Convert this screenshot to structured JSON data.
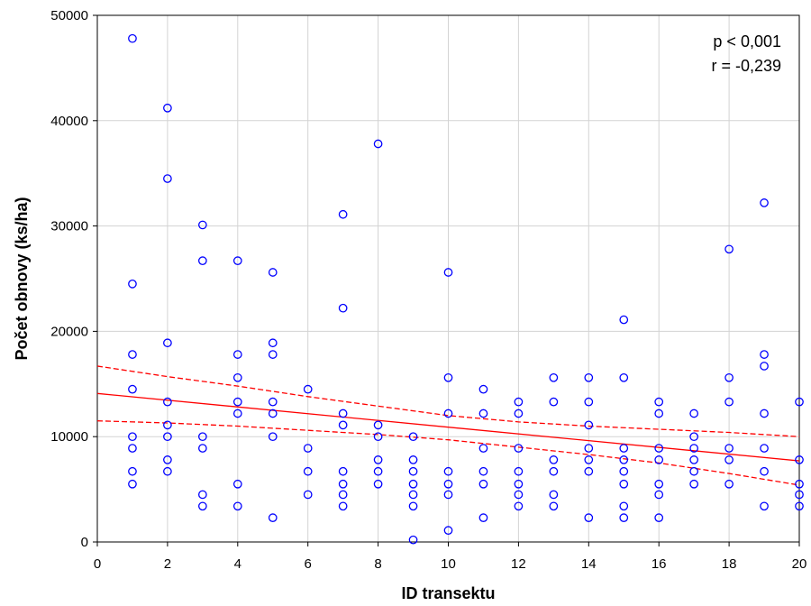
{
  "chart_data": {
    "type": "scatter",
    "title": "",
    "xlabel": "ID transektu",
    "ylabel": "Počet obnovy (ks/ha)",
    "xlim": [
      0,
      20
    ],
    "ylim": [
      0,
      50000
    ],
    "xticks": [
      0,
      2,
      4,
      6,
      8,
      10,
      12,
      14,
      16,
      18,
      20
    ],
    "yticks": [
      0,
      10000,
      20000,
      30000,
      40000,
      50000
    ],
    "x_tick_labels": [
      "0",
      "2",
      "4",
      "6",
      "8",
      "10",
      "12",
      "14",
      "16",
      "18",
      "20"
    ],
    "y_tick_labels": [
      "0",
      "10000",
      "20000",
      "30000",
      "40000",
      "50000"
    ],
    "grid": true,
    "annotations": [
      "p < 0,001",
      "r = -0,239"
    ],
    "colors": {
      "points": "#0000ff",
      "fit": "#ff0000"
    },
    "points": [
      [
        1,
        47800
      ],
      [
        1,
        24500
      ],
      [
        1,
        17800
      ],
      [
        1,
        14500
      ],
      [
        1,
        10000
      ],
      [
        1,
        8900
      ],
      [
        1,
        6700
      ],
      [
        1,
        5500
      ],
      [
        2,
        41200
      ],
      [
        2,
        34500
      ],
      [
        2,
        18900
      ],
      [
        2,
        13300
      ],
      [
        2,
        11100
      ],
      [
        2,
        10000
      ],
      [
        2,
        7800
      ],
      [
        2,
        6700
      ],
      [
        3,
        30100
      ],
      [
        3,
        26700
      ],
      [
        3,
        10000
      ],
      [
        3,
        8900
      ],
      [
        3,
        4500
      ],
      [
        3,
        3400
      ],
      [
        4,
        26700
      ],
      [
        4,
        17800
      ],
      [
        4,
        15600
      ],
      [
        4,
        13300
      ],
      [
        4,
        12200
      ],
      [
        4,
        5500
      ],
      [
        4,
        3400
      ],
      [
        5,
        25600
      ],
      [
        5,
        18900
      ],
      [
        5,
        17800
      ],
      [
        5,
        13300
      ],
      [
        5,
        12200
      ],
      [
        5,
        10000
      ],
      [
        5,
        2300
      ],
      [
        6,
        14500
      ],
      [
        6,
        8900
      ],
      [
        6,
        6700
      ],
      [
        6,
        4500
      ],
      [
        7,
        31100
      ],
      [
        7,
        22200
      ],
      [
        7,
        12200
      ],
      [
        7,
        11100
      ],
      [
        7,
        6700
      ],
      [
        7,
        5500
      ],
      [
        7,
        4500
      ],
      [
        7,
        3400
      ],
      [
        8,
        37800
      ],
      [
        8,
        11100
      ],
      [
        8,
        10000
      ],
      [
        8,
        7800
      ],
      [
        8,
        6700
      ],
      [
        8,
        5500
      ],
      [
        9,
        10000
      ],
      [
        9,
        7800
      ],
      [
        9,
        6700
      ],
      [
        9,
        5500
      ],
      [
        9,
        4500
      ],
      [
        9,
        3400
      ],
      [
        9,
        200
      ],
      [
        10,
        25600
      ],
      [
        10,
        15600
      ],
      [
        10,
        12200
      ],
      [
        10,
        6700
      ],
      [
        10,
        5500
      ],
      [
        10,
        4500
      ],
      [
        10,
        1100
      ],
      [
        11,
        14500
      ],
      [
        11,
        12200
      ],
      [
        11,
        8900
      ],
      [
        11,
        6700
      ],
      [
        11,
        5500
      ],
      [
        11,
        2300
      ],
      [
        12,
        13300
      ],
      [
        12,
        12200
      ],
      [
        12,
        8900
      ],
      [
        12,
        6700
      ],
      [
        12,
        5500
      ],
      [
        12,
        4500
      ],
      [
        12,
        3400
      ],
      [
        13,
        15600
      ],
      [
        13,
        13300
      ],
      [
        13,
        7800
      ],
      [
        13,
        6700
      ],
      [
        13,
        4500
      ],
      [
        13,
        3400
      ],
      [
        14,
        15600
      ],
      [
        14,
        13300
      ],
      [
        14,
        11100
      ],
      [
        14,
        8900
      ],
      [
        14,
        7800
      ],
      [
        14,
        6700
      ],
      [
        14,
        2300
      ],
      [
        15,
        21100
      ],
      [
        15,
        15600
      ],
      [
        15,
        8900
      ],
      [
        15,
        7800
      ],
      [
        15,
        6700
      ],
      [
        15,
        5500
      ],
      [
        15,
        3400
      ],
      [
        15,
        2300
      ],
      [
        16,
        13300
      ],
      [
        16,
        12200
      ],
      [
        16,
        8900
      ],
      [
        16,
        7800
      ],
      [
        16,
        5500
      ],
      [
        16,
        4500
      ],
      [
        16,
        2300
      ],
      [
        17,
        12200
      ],
      [
        17,
        10000
      ],
      [
        17,
        8900
      ],
      [
        17,
        7800
      ],
      [
        17,
        6700
      ],
      [
        17,
        5500
      ],
      [
        18,
        27800
      ],
      [
        18,
        15600
      ],
      [
        18,
        13300
      ],
      [
        18,
        8900
      ],
      [
        18,
        7800
      ],
      [
        18,
        5500
      ],
      [
        19,
        32200
      ],
      [
        19,
        17800
      ],
      [
        19,
        16700
      ],
      [
        19,
        12200
      ],
      [
        19,
        8900
      ],
      [
        19,
        6700
      ],
      [
        19,
        3400
      ],
      [
        20,
        13300
      ],
      [
        20,
        7800
      ],
      [
        20,
        5500
      ],
      [
        20,
        4500
      ],
      [
        20,
        3400
      ]
    ],
    "regression_line": {
      "x": [
        0,
        20
      ],
      "y": [
        14100,
        7700
      ]
    },
    "confidence_band": {
      "x": [
        0,
        2,
        4,
        6,
        8,
        10,
        12,
        14,
        16,
        18,
        20
      ],
      "upper": [
        16700,
        15700,
        14800,
        13800,
        12900,
        12000,
        11400,
        11000,
        10700,
        10400,
        10000
      ],
      "lower": [
        11500,
        11300,
        11000,
        10600,
        10200,
        9700,
        9000,
        8300,
        7500,
        6500,
        5400
      ]
    }
  }
}
